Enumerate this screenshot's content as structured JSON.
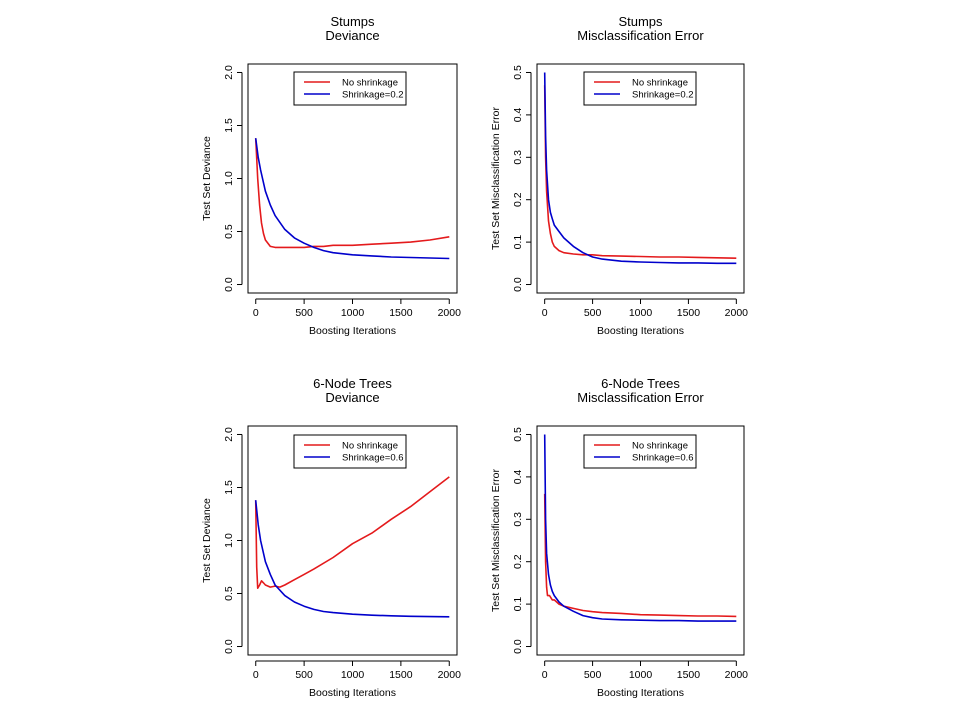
{
  "colors": {
    "no_shrinkage": "#e41a1c",
    "shrinkage": "#0000cc"
  },
  "chart_data": [
    {
      "type": "line",
      "title": "Stumps",
      "subtitle": "Deviance",
      "xlabel": "Boosting Iterations",
      "ylabel": "Test Set Deviance",
      "xlim": [
        0,
        2000
      ],
      "ylim": [
        0,
        2.0
      ],
      "xticks": [
        "0",
        "500",
        "1000",
        "1500",
        "2000"
      ],
      "yticks": [
        "0.0",
        "0.5",
        "1.0",
        "1.5",
        "2.0"
      ],
      "grid": false,
      "legend_position": "top-right",
      "series": [
        {
          "name": "No shrinkage",
          "color": "#e41a1c",
          "x": [
            0,
            20,
            40,
            60,
            80,
            100,
            150,
            200,
            300,
            400,
            500,
            600,
            700,
            800,
            1000,
            1200,
            1400,
            1600,
            1800,
            2000
          ],
          "y": [
            1.38,
            1.0,
            0.75,
            0.58,
            0.48,
            0.42,
            0.36,
            0.35,
            0.35,
            0.35,
            0.35,
            0.36,
            0.36,
            0.37,
            0.37,
            0.38,
            0.39,
            0.4,
            0.42,
            0.45
          ]
        },
        {
          "name": "Shrinkage=0.2",
          "color": "#0000cc",
          "x": [
            0,
            25,
            50,
            100,
            150,
            200,
            300,
            400,
            500,
            600,
            700,
            800,
            1000,
            1200,
            1400,
            1600,
            1800,
            2000
          ],
          "y": [
            1.38,
            1.2,
            1.08,
            0.88,
            0.75,
            0.65,
            0.52,
            0.44,
            0.39,
            0.35,
            0.32,
            0.3,
            0.28,
            0.27,
            0.26,
            0.255,
            0.25,
            0.245
          ]
        }
      ]
    },
    {
      "type": "line",
      "title": "Stumps",
      "subtitle": "Misclassification Error",
      "xlabel": "Boosting Iterations",
      "ylabel": "Test Set Misclassification Error",
      "xlim": [
        0,
        2000
      ],
      "ylim": [
        0,
        0.5
      ],
      "xticks": [
        "0",
        "500",
        "1000",
        "1500",
        "2000"
      ],
      "yticks": [
        "0.0",
        "0.1",
        "0.2",
        "0.3",
        "0.4",
        "0.5"
      ],
      "grid": false,
      "legend_position": "top-right",
      "series": [
        {
          "name": "No shrinkage",
          "color": "#e41a1c",
          "x": [
            0,
            10,
            20,
            40,
            60,
            80,
            100,
            150,
            200,
            300,
            400,
            500,
            600,
            800,
            1000,
            1200,
            1400,
            1600,
            1800,
            2000
          ],
          "y": [
            0.47,
            0.3,
            0.22,
            0.15,
            0.12,
            0.1,
            0.09,
            0.08,
            0.075,
            0.072,
            0.07,
            0.07,
            0.068,
            0.067,
            0.066,
            0.065,
            0.065,
            0.064,
            0.063,
            0.062
          ]
        },
        {
          "name": "Shrinkage=0.2",
          "color": "#0000cc",
          "x": [
            0,
            10,
            20,
            40,
            60,
            80,
            100,
            150,
            200,
            300,
            400,
            500,
            600,
            800,
            1000,
            1200,
            1400,
            1600,
            1800,
            2000
          ],
          "y": [
            0.5,
            0.35,
            0.27,
            0.2,
            0.17,
            0.155,
            0.14,
            0.125,
            0.11,
            0.09,
            0.075,
            0.065,
            0.06,
            0.055,
            0.053,
            0.052,
            0.051,
            0.051,
            0.05,
            0.05
          ]
        }
      ]
    },
    {
      "type": "line",
      "title": "6-Node Trees",
      "subtitle": "Deviance",
      "xlabel": "Boosting Iterations",
      "ylabel": "Test Set Deviance",
      "xlim": [
        0,
        2000
      ],
      "ylim": [
        0,
        2.0
      ],
      "xticks": [
        "0",
        "500",
        "1000",
        "1500",
        "2000"
      ],
      "yticks": [
        "0.0",
        "0.5",
        "1.0",
        "1.5",
        "2.0"
      ],
      "grid": false,
      "legend_position": "top-right",
      "series": [
        {
          "name": "No shrinkage",
          "color": "#e41a1c",
          "x": [
            0,
            10,
            20,
            40,
            60,
            80,
            100,
            150,
            200,
            250,
            300,
            400,
            500,
            600,
            800,
            1000,
            1200,
            1400,
            1600,
            1800,
            2000
          ],
          "y": [
            1.38,
            0.75,
            0.55,
            0.58,
            0.62,
            0.6,
            0.58,
            0.56,
            0.57,
            0.56,
            0.58,
            0.63,
            0.68,
            0.73,
            0.84,
            0.97,
            1.07,
            1.2,
            1.32,
            1.46,
            1.6
          ]
        },
        {
          "name": "Shrinkage=0.6",
          "color": "#0000cc",
          "x": [
            0,
            25,
            50,
            100,
            150,
            200,
            300,
            400,
            500,
            600,
            700,
            800,
            1000,
            1200,
            1400,
            1600,
            1800,
            2000
          ],
          "y": [
            1.38,
            1.15,
            1.0,
            0.8,
            0.68,
            0.58,
            0.48,
            0.42,
            0.38,
            0.35,
            0.33,
            0.32,
            0.305,
            0.295,
            0.29,
            0.285,
            0.282,
            0.28
          ]
        }
      ]
    },
    {
      "type": "line",
      "title": "6-Node Trees",
      "subtitle": "Misclassification Error",
      "xlabel": "Boosting Iterations",
      "ylabel": "Test Set Misclassification Error",
      "xlim": [
        0,
        2000
      ],
      "ylim": [
        0,
        0.5
      ],
      "xticks": [
        "0",
        "500",
        "1000",
        "1500",
        "2000"
      ],
      "yticks": [
        "0.0",
        "0.1",
        "0.2",
        "0.3",
        "0.4",
        "0.5"
      ],
      "grid": false,
      "legend_position": "top-right",
      "series": [
        {
          "name": "No shrinkage",
          "color": "#e41a1c",
          "x": [
            0,
            10,
            20,
            30,
            50,
            80,
            100,
            150,
            200,
            300,
            400,
            500,
            600,
            800,
            1000,
            1200,
            1400,
            1600,
            1800,
            2000
          ],
          "y": [
            0.36,
            0.2,
            0.14,
            0.12,
            0.12,
            0.11,
            0.11,
            0.1,
            0.095,
            0.09,
            0.085,
            0.082,
            0.08,
            0.078,
            0.075,
            0.074,
            0.073,
            0.072,
            0.072,
            0.071
          ]
        },
        {
          "name": "Shrinkage=0.6",
          "color": "#0000cc",
          "x": [
            0,
            10,
            20,
            40,
            60,
            80,
            100,
            150,
            200,
            300,
            400,
            500,
            600,
            800,
            1000,
            1200,
            1400,
            1600,
            1800,
            2000
          ],
          "y": [
            0.5,
            0.3,
            0.22,
            0.17,
            0.145,
            0.13,
            0.12,
            0.105,
            0.095,
            0.083,
            0.073,
            0.068,
            0.065,
            0.063,
            0.062,
            0.061,
            0.061,
            0.06,
            0.06,
            0.06
          ]
        }
      ]
    }
  ]
}
